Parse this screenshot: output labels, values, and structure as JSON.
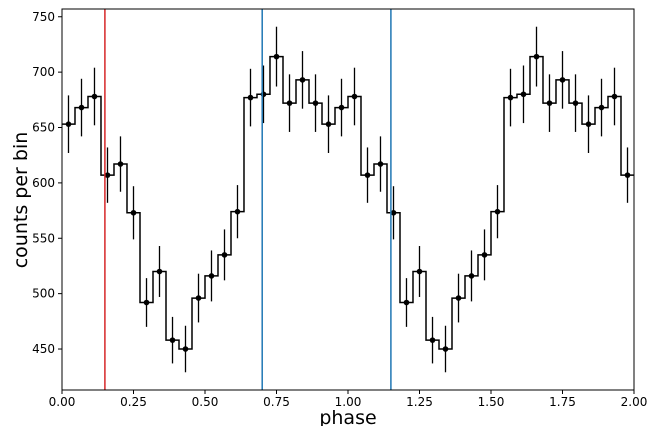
{
  "chart_data": {
    "type": "line",
    "style": "step histogram with error bars",
    "xlabel": "phase",
    "ylabel": "counts per bin",
    "xlim": [
      0.0,
      2.0
    ],
    "ylim": [
      413,
      757
    ],
    "xticks": [
      0.0,
      0.25,
      0.5,
      0.75,
      1.0,
      1.25,
      1.5,
      1.75,
      2.0
    ],
    "xtick_labels": [
      "0.00",
      "0.25",
      "0.50",
      "0.75",
      "1.00",
      "1.25",
      "1.50",
      "1.75",
      "2.00"
    ],
    "yticks": [
      450,
      500,
      550,
      600,
      650,
      700,
      750
    ],
    "ytick_labels": [
      "450",
      "500",
      "550",
      "600",
      "650",
      "700",
      "750"
    ],
    "grid": false,
    "bin_width": 0.0454545,
    "series": [
      {
        "color": "#000000",
        "x": [
          0.0227,
          0.0682,
          0.1136,
          0.1591,
          0.2045,
          0.25,
          0.2955,
          0.3409,
          0.3864,
          0.4318,
          0.4773,
          0.5227,
          0.5682,
          0.6136,
          0.6591,
          0.7045,
          0.75,
          0.7955,
          0.8409,
          0.8864,
          0.9318,
          0.9773,
          1.0227,
          1.0682,
          1.1136,
          1.1591,
          1.2045,
          1.25,
          1.2955,
          1.3409,
          1.3864,
          1.4318,
          1.4773,
          1.5227,
          1.5682,
          1.6136,
          1.6591,
          1.7045,
          1.75,
          1.7955,
          1.8409,
          1.8864,
          1.9318,
          1.9773
        ],
        "y": [
          653,
          668,
          678,
          607,
          617,
          573,
          492,
          520,
          458,
          450,
          496,
          516,
          535,
          574,
          677,
          680,
          714,
          672,
          693,
          672,
          653,
          668,
          678,
          607,
          617,
          573,
          492,
          520,
          458,
          450,
          496,
          516,
          535,
          574,
          677,
          680,
          714,
          672,
          693,
          672,
          653,
          668,
          678,
          607
        ],
        "yerr": [
          26,
          26,
          26,
          25,
          25,
          24,
          22,
          23,
          21,
          21,
          22,
          23,
          23,
          24,
          26,
          26,
          27,
          26,
          26,
          26,
          26,
          26,
          26,
          25,
          25,
          24,
          22,
          23,
          21,
          21,
          22,
          23,
          23,
          24,
          26,
          26,
          27,
          26,
          26,
          26,
          26,
          26,
          26,
          25
        ]
      }
    ],
    "vlines": [
      {
        "x": 0.15,
        "color": "#d62728"
      },
      {
        "x": 0.7,
        "color": "#1f77b4"
      },
      {
        "x": 1.15,
        "color": "#1f77b4"
      }
    ]
  }
}
